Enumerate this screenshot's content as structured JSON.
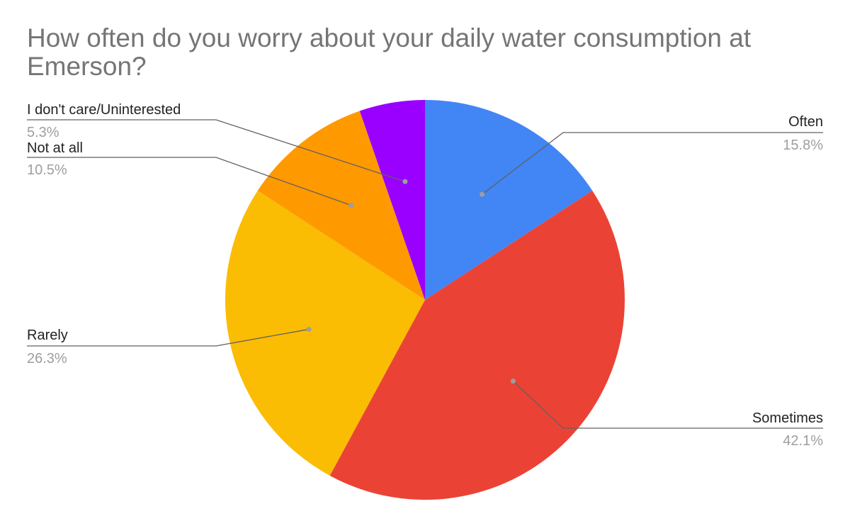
{
  "chart_data": {
    "type": "pie",
    "title": "How often do you worry about your daily water consumption at Emerson?",
    "slices": [
      {
        "label": "Often",
        "value": 15.8,
        "percent_label": "15.8%",
        "color": "#4285F4"
      },
      {
        "label": "Sometimes",
        "value": 42.1,
        "percent_label": "42.1%",
        "color": "#EA4335"
      },
      {
        "label": "Rarely",
        "value": 26.3,
        "percent_label": "26.3%",
        "color": "#FBBC04"
      },
      {
        "label": "Not at all",
        "value": 10.5,
        "percent_label": "10.5%",
        "color": "#FF9900"
      },
      {
        "label": "I don't care/Uninterested",
        "value": 5.3,
        "percent_label": "5.3%",
        "color": "#9900FF"
      }
    ],
    "start_angle": "12 o'clock",
    "direction": "clockwise",
    "legend": "none"
  }
}
